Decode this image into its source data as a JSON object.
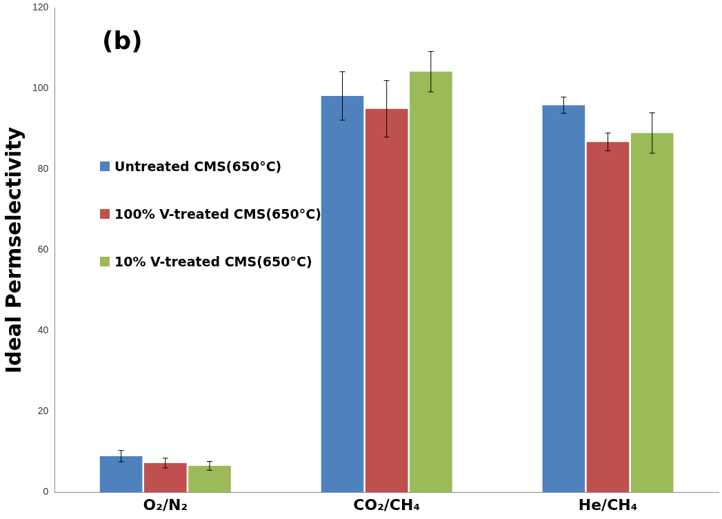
{
  "chart_data": {
    "type": "bar",
    "ylabel": "Ideal Permselectivity",
    "annotations": [
      "(b)"
    ],
    "categories": [
      "O₂/N₂",
      "CO₂/CH₄",
      "He/CH₄"
    ],
    "series": [
      {
        "name": "Untreated CMS(650°C)",
        "color": "#4f81bd",
        "values": [
          9.0,
          98.2,
          95.9
        ],
        "errors": [
          1.4,
          6,
          2
        ]
      },
      {
        "name": "100% V-treated CMS(650°C)",
        "color": "#c0504d",
        "values": [
          7.3,
          95.0,
          86.8
        ],
        "errors": [
          1.2,
          7,
          2.2
        ]
      },
      {
        "name": "10% V-treated CMS(650°C)",
        "color": "#9bbb59",
        "values": [
          6.6,
          104.2,
          89.0
        ],
        "errors": [
          1.1,
          5,
          5
        ]
      }
    ],
    "ylim": [
      0,
      120
    ],
    "yticks": [
      0,
      20,
      40,
      60,
      80,
      100,
      120
    ],
    "grid": false,
    "legend": "left"
  }
}
